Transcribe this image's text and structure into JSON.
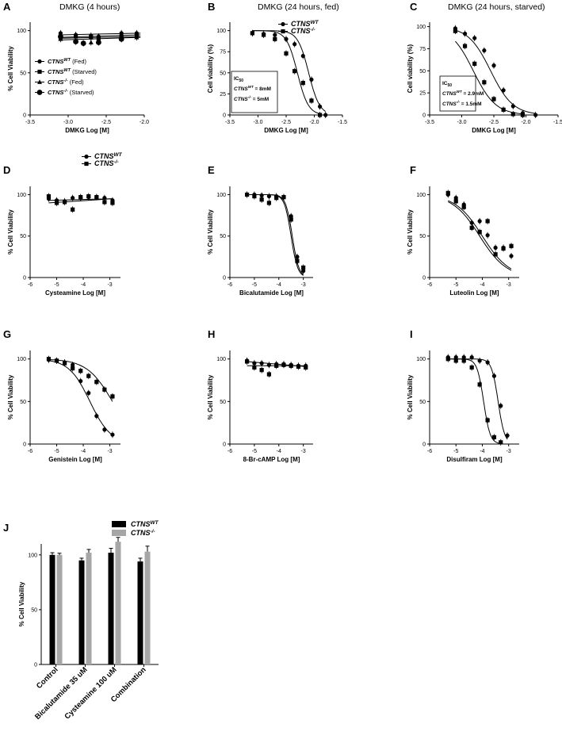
{
  "chart_data": [
    {
      "panel": "A",
      "type": "scatter",
      "title": "DMKG (4 hours)",
      "xlabel": "DMKG Log [M]",
      "ylabel": "% Cell Viability",
      "xlim": [
        -3.5,
        -2.0
      ],
      "ylim": [
        0,
        110
      ],
      "xticks": [
        -3.5,
        -3.0,
        -2.5,
        -2.0
      ],
      "xtick_labels": [
        "-3.5",
        "-3.0",
        "-2.5",
        "-2.0"
      ],
      "yticks": [
        0,
        50,
        100
      ],
      "ytick_labels": [
        "0",
        "50",
        "100"
      ],
      "legend": [
        {
          "label": "CTNS",
          "sup": "WT",
          "suffix": " (Fed)",
          "marker": "circle"
        },
        {
          "label": "CTNS",
          "sup": "WT",
          "suffix": " (Starved)",
          "marker": "square"
        },
        {
          "label": "CTNS",
          "sup": "-/-",
          "suffix": " (Fed)",
          "marker": "triangle"
        },
        {
          "label": "CTNS",
          "sup": "-/-",
          "suffix": " (Starved)",
          "marker": "bigcircle"
        }
      ],
      "series": [
        {
          "marker": "circle",
          "x": [
            -3.1,
            -2.9,
            -2.7,
            -2.6,
            -2.3,
            -2.1
          ],
          "y": [
            97,
            95,
            94,
            93,
            97,
            97
          ],
          "fit": [
            [
              -3.1,
              95
            ],
            [
              -2.05,
              97
            ]
          ]
        },
        {
          "marker": "square",
          "x": [
            -3.1,
            -2.9,
            -2.7,
            -2.6,
            -2.3,
            -2.1
          ],
          "y": [
            92,
            93,
            92,
            91,
            93,
            94
          ],
          "fit": [
            [
              -3.1,
              92
            ],
            [
              -2.05,
              95
            ]
          ]
        },
        {
          "marker": "triangle",
          "x": [
            -3.1,
            -2.9,
            -2.7,
            -2.6,
            -2.3,
            -2.1
          ],
          "y": [
            90,
            88,
            86,
            88,
            90,
            92
          ],
          "fit": [
            [
              -3.1,
              91
            ],
            [
              -2.05,
              93
            ]
          ]
        },
        {
          "marker": "bigcircle",
          "x": [
            -3.1,
            -2.9,
            -2.8,
            -2.6,
            -2.3
          ],
          "y": [
            93,
            87,
            85,
            86,
            90
          ],
          "fit": [
            [
              -3.1,
              89
            ],
            [
              -2.05,
              92
            ]
          ]
        }
      ]
    },
    {
      "panel": "B",
      "type": "scatter",
      "title": "DMKG (24 hours, fed)",
      "xlabel": "DMKG Log [M]",
      "ylabel": "Cell viability (%)",
      "xlim": [
        -3.5,
        -1.5
      ],
      "ylim": [
        0,
        110
      ],
      "xticks": [
        -3.5,
        -3.0,
        -2.5,
        -2.0,
        -1.5
      ],
      "xtick_labels": [
        "-3.5",
        "-3.0",
        "-2.5",
        "-2.0",
        "-1.5"
      ],
      "yticks": [
        0,
        25,
        50,
        75,
        100
      ],
      "ytick_labels": [
        "0",
        "25",
        "50",
        "75",
        "100"
      ],
      "legend": [
        {
          "label": "CTNS",
          "sup": "WT",
          "suffix": "",
          "marker": "circle"
        },
        {
          "label": "CTNS",
          "sup": "-/-",
          "suffix": "",
          "marker": "square"
        }
      ],
      "ic50_box": {
        "title": "IC",
        "title_sub": "50",
        "lines": [
          {
            "label": "CTNS",
            "sup": "WT",
            "value": " = 8mM"
          },
          {
            "label": "CTNS",
            "sup": "-/-",
            "value": " = 5mM"
          }
        ]
      },
      "series": [
        {
          "marker": "circle",
          "x": [
            -3.1,
            -2.9,
            -2.7,
            -2.5,
            -2.35,
            -2.2,
            -2.05,
            -1.9,
            -1.8
          ],
          "y": [
            97,
            96,
            95,
            90,
            84,
            70,
            42,
            10,
            0
          ],
          "ic50": -2.1,
          "hill": 4.5
        },
        {
          "marker": "square",
          "x": [
            -3.1,
            -2.9,
            -2.7,
            -2.5,
            -2.35,
            -2.2,
            -2.05,
            -1.9
          ],
          "y": [
            97,
            95,
            90,
            73,
            52,
            38,
            17,
            0
          ],
          "ic50": -2.3,
          "hill": 4.5
        }
      ]
    },
    {
      "panel": "C",
      "type": "scatter",
      "title": "DMKG (24 hours, starved)",
      "xlabel": "DMKG Log [M]",
      "ylabel": "Cell viability (%)",
      "xlim": [
        -3.5,
        -1.5
      ],
      "ylim": [
        0,
        105
      ],
      "xticks": [
        -3.5,
        -3.0,
        -2.5,
        -2.0,
        -1.5
      ],
      "xtick_labels": [
        "-3.5",
        "-3.0",
        "-2.5",
        "-2.0",
        "-1.5"
      ],
      "yticks": [
        0,
        25,
        50,
        75,
        100
      ],
      "ytick_labels": [
        "0",
        "25",
        "50",
        "75",
        "100"
      ],
      "ic50_box": {
        "title": "IC",
        "title_sub": "50",
        "lines": [
          {
            "label": "CTNS",
            "sup": "WT",
            "value": " = 2.9mM"
          },
          {
            "label": "CTNS",
            "sup": "-/-",
            "value": " = 1.5mM"
          }
        ]
      },
      "series": [
        {
          "marker": "circle",
          "x": [
            -3.1,
            -2.95,
            -2.8,
            -2.65,
            -2.5,
            -2.35,
            -2.2,
            -2.05,
            -1.85
          ],
          "y": [
            98,
            92,
            87,
            73,
            56,
            28,
            10,
            2,
            0
          ],
          "ic50": -2.55,
          "hill": 2.5
        },
        {
          "marker": "square",
          "x": [
            -3.1,
            -2.95,
            -2.8,
            -2.65,
            -2.5,
            -2.35,
            -2.2,
            -2.05
          ],
          "y": [
            95,
            78,
            58,
            37,
            18,
            6,
            1,
            0
          ],
          "ic50": -2.82,
          "hill": 2.5
        }
      ]
    },
    {
      "panel": "D",
      "type": "scatter",
      "title": "",
      "xlabel": "Cysteamine Log [M]",
      "ylabel": "% Cell Viability",
      "xlim": [
        -6,
        -2.6
      ],
      "ylim": [
        0,
        110
      ],
      "xticks": [
        -6,
        -5,
        -4,
        -3
      ],
      "xtick_labels": [
        "-6",
        "-5",
        "-4",
        "-3"
      ],
      "yticks": [
        0,
        50,
        100
      ],
      "ytick_labels": [
        "0",
        "50",
        "100"
      ],
      "legend": [
        {
          "label": "CTNS",
          "sup": "WT",
          "suffix": "",
          "marker": "circle"
        },
        {
          "label": "CTNS",
          "sup": "-/-",
          "suffix": "",
          "marker": "square"
        }
      ],
      "series": [
        {
          "marker": "circle",
          "x": [
            -5.3,
            -5.0,
            -4.7,
            -4.4,
            -4.1,
            -3.8,
            -3.5,
            -3.2,
            -2.9
          ],
          "y": [
            95,
            93,
            92,
            96,
            96,
            97,
            97,
            96,
            93
          ],
          "fit": [
            [
              -5.3,
              93
            ],
            [
              -2.9,
              95
            ]
          ]
        },
        {
          "marker": "square",
          "x": [
            -5.3,
            -5.0,
            -4.7,
            -4.4,
            -4.1,
            -3.8,
            -3.5,
            -3.2,
            -2.9
          ],
          "y": [
            98,
            90,
            91,
            82,
            97,
            98,
            97,
            91,
            90
          ],
          "fit": [
            [
              -5.3,
              90
            ],
            [
              -2.9,
              95
            ]
          ]
        }
      ]
    },
    {
      "panel": "E",
      "type": "scatter",
      "title": "",
      "xlabel": "Bicalutamide Log [M]",
      "ylabel": "% Cell Viability",
      "xlim": [
        -6,
        -2.6
      ],
      "ylim": [
        0,
        110
      ],
      "xticks": [
        -6,
        -5,
        -4,
        -3
      ],
      "xtick_labels": [
        "-6",
        "-5",
        "-4",
        "-3"
      ],
      "yticks": [
        0,
        50,
        100
      ],
      "ytick_labels": [
        "0",
        "50",
        "100"
      ],
      "series": [
        {
          "marker": "circle",
          "x": [
            -5.3,
            -5.0,
            -4.7,
            -4.4,
            -4.1,
            -3.8,
            -3.5,
            -3.25,
            -3.0
          ],
          "y": [
            100,
            100,
            99,
            98,
            98,
            97,
            74,
            25,
            8
          ],
          "ic50": -3.45,
          "hill": 3.2
        },
        {
          "marker": "square",
          "x": [
            -5.3,
            -5.0,
            -4.7,
            -4.4,
            -4.1,
            -3.8,
            -3.5,
            -3.25,
            -3.0
          ],
          "y": [
            100,
            98,
            94,
            90,
            96,
            97,
            70,
            20,
            12
          ],
          "ic50": -3.5,
          "hill": 3.2
        }
      ]
    },
    {
      "panel": "F",
      "type": "scatter",
      "title": "",
      "xlabel": "Luteolin Log [M]",
      "ylabel": "% Cell Viability",
      "xlim": [
        -6,
        -2.6
      ],
      "ylim": [
        0,
        110
      ],
      "xticks": [
        -6,
        -5,
        -4,
        -3
      ],
      "xtick_labels": [
        "-6",
        "-5",
        "-4",
        "-3"
      ],
      "yticks": [
        0,
        50,
        100
      ],
      "ytick_labels": [
        "0",
        "50",
        "100"
      ],
      "series": [
        {
          "marker": "circle",
          "x": [
            -5.3,
            -5.0,
            -4.7,
            -4.4,
            -4.1,
            -3.8,
            -3.5,
            -3.2,
            -2.9
          ],
          "y": [
            100,
            96,
            88,
            66,
            68,
            51,
            36,
            36,
            26
          ],
          "ic50": -4.0,
          "hill": 0.85
        },
        {
          "marker": "square",
          "x": [
            -5.3,
            -5.0,
            -4.7,
            -4.4,
            -4.1,
            -3.8,
            -3.5,
            -3.2,
            -2.9
          ],
          "y": [
            102,
            92,
            85,
            60,
            55,
            68,
            28,
            35,
            38
          ],
          "ic50": -4.1,
          "hill": 0.85
        }
      ]
    },
    {
      "panel": "G",
      "type": "scatter",
      "title": "",
      "xlabel": "Genistein Log [M]",
      "ylabel": "% Cell Viability",
      "xlim": [
        -6,
        -2.6
      ],
      "ylim": [
        0,
        110
      ],
      "xticks": [
        -6,
        -5,
        -4,
        -3
      ],
      "xtick_labels": [
        "-6",
        "-5",
        "-4",
        "-3"
      ],
      "yticks": [
        0,
        50,
        100
      ],
      "ytick_labels": [
        "0",
        "50",
        "100"
      ],
      "series": [
        {
          "marker": "circle",
          "x": [
            -5.3,
            -5.0,
            -4.7,
            -4.4,
            -4.1,
            -3.8,
            -3.5,
            -3.2,
            -2.9
          ],
          "y": [
            99,
            98,
            96,
            93,
            74,
            60,
            33,
            17,
            11
          ],
          "ic50": -3.75,
          "hill": 1.1
        },
        {
          "marker": "square",
          "x": [
            -5.3,
            -5.0,
            -4.7,
            -4.4,
            -4.1,
            -3.8,
            -3.5,
            -3.2,
            -2.9
          ],
          "y": [
            100,
            98,
            95,
            89,
            86,
            80,
            73,
            64,
            56
          ],
          "ic50": -2.9,
          "hill": 0.9
        }
      ]
    },
    {
      "panel": "H",
      "type": "scatter",
      "title": "",
      "xlabel": "8-Br-cAMP Log [M]",
      "ylabel": "% Cell Viability",
      "xlim": [
        -6,
        -2.6
      ],
      "ylim": [
        0,
        110
      ],
      "xticks": [
        -6,
        -5,
        -4,
        -3
      ],
      "xtick_labels": [
        "-6",
        "-5",
        "-4",
        "-3"
      ],
      "yticks": [
        0,
        50,
        100
      ],
      "ytick_labels": [
        "0",
        "50",
        "100"
      ],
      "series": [
        {
          "marker": "circle",
          "x": [
            -5.3,
            -5.0,
            -4.7,
            -4.4,
            -4.1,
            -3.8,
            -3.5,
            -3.2,
            -2.9
          ],
          "y": [
            98,
            95,
            95,
            93,
            94,
            94,
            93,
            92,
            92
          ],
          "fit": [
            [
              -5.3,
              97
            ],
            [
              -2.9,
              91
            ]
          ]
        },
        {
          "marker": "square",
          "x": [
            -5.3,
            -5.0,
            -4.7,
            -4.4,
            -4.1,
            -3.8,
            -3.5,
            -3.2,
            -2.9
          ],
          "y": [
            97,
            90,
            87,
            82,
            92,
            93,
            92,
            91,
            90
          ],
          "fit": [
            [
              -5.3,
              92
            ],
            [
              -2.9,
              92
            ]
          ]
        }
      ]
    },
    {
      "panel": "I",
      "type": "scatter",
      "title": "",
      "xlabel": "Disulfiram Log [M]",
      "ylabel": "% Cell Viability",
      "xlim": [
        -6,
        -2.6
      ],
      "ylim": [
        0,
        110
      ],
      "xticks": [
        -6,
        -5,
        -4,
        -3
      ],
      "xtick_labels": [
        "-6",
        "-5",
        "-4",
        "-3"
      ],
      "yticks": [
        0,
        50,
        100
      ],
      "ytick_labels": [
        "0",
        "50",
        "100"
      ],
      "series": [
        {
          "marker": "circle",
          "x": [
            -5.3,
            -5.0,
            -4.7,
            -4.4,
            -4.1,
            -3.8,
            -3.55,
            -3.3,
            -3.05
          ],
          "y": [
            102,
            102,
            102,
            102,
            98,
            96,
            80,
            45,
            10
          ],
          "ic50": -3.4,
          "hill": 3.5
        },
        {
          "marker": "square",
          "x": [
            -5.3,
            -5.0,
            -4.7,
            -4.4,
            -4.1,
            -3.8,
            -3.55,
            -3.3
          ],
          "y": [
            100,
            98,
            98,
            90,
            70,
            28,
            8,
            2
          ],
          "ic50": -3.95,
          "hill": 3.5
        }
      ]
    },
    {
      "panel": "J",
      "type": "bar",
      "title": "",
      "xlabel": "",
      "ylabel": "% Cell Viability",
      "ylim": [
        0,
        110
      ],
      "yticks": [
        0,
        50,
        100
      ],
      "ytick_labels": [
        "0",
        "50",
        "100"
      ],
      "categories": [
        "Control",
        "Bicalutamide 35 uM",
        "Cysteamine 100 uM",
        "Combination"
      ],
      "legend": [
        {
          "label": "CTNS",
          "sup": "WT",
          "color": "#000000"
        },
        {
          "label": "CTNS",
          "sup": "-/-",
          "color": "#a6a6a6"
        }
      ],
      "series": [
        {
          "name": "CTNS WT",
          "color": "#000000",
          "values": [
            100,
            95,
            102,
            94
          ],
          "err": [
            2,
            2,
            4,
            3
          ]
        },
        {
          "name": "CTNS -/-",
          "color": "#a6a6a6",
          "values": [
            100,
            102,
            112,
            103
          ],
          "err": [
            1.5,
            3,
            4,
            5
          ]
        }
      ]
    }
  ]
}
